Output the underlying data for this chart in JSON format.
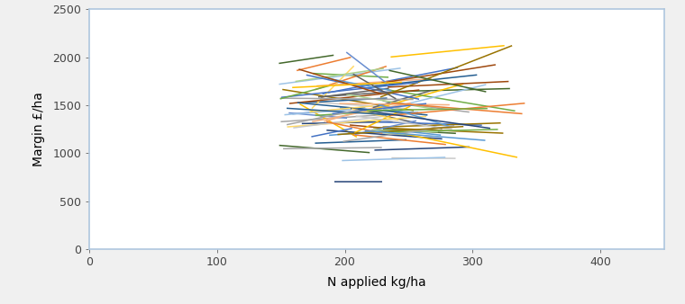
{
  "xlabel": "N applied kg/ha",
  "ylabel": "Margin £/ha",
  "xlim": [
    0,
    450
  ],
  "ylim": [
    0,
    2500
  ],
  "xticks": [
    0,
    100,
    200,
    300,
    400
  ],
  "yticks": [
    0,
    500,
    1000,
    1500,
    2000,
    2500
  ],
  "fig_facecolor": "#f0f0f0",
  "plot_bg_color": "#ffffff",
  "spine_color": "#aec6de",
  "line_colors": [
    "#4472c4",
    "#ed7d31",
    "#a5a5a5",
    "#ffc000",
    "#5b9bd5",
    "#70ad47",
    "#264478",
    "#9e480e",
    "#636363",
    "#997300",
    "#255e91",
    "#43682b",
    "#698ed0",
    "#f4b183",
    "#c9c9c9",
    "#ffd966",
    "#9dc3e6",
    "#a9d18e",
    "#4472c4",
    "#ed7d31",
    "#a5a5a5",
    "#ffc000",
    "#5b9bd5",
    "#70ad47",
    "#264478",
    "#9e480e",
    "#636363",
    "#997300",
    "#255e91",
    "#43682b",
    "#698ed0",
    "#f4b183",
    "#c9c9c9",
    "#ffd966",
    "#9dc3e6",
    "#a9d18e",
    "#4472c4",
    "#ed7d31",
    "#a5a5a5",
    "#ffc000",
    "#5b9bd5",
    "#70ad47",
    "#264478",
    "#9e480e",
    "#636363",
    "#997300",
    "#255e91",
    "#43682b",
    "#698ed0",
    "#f4b183",
    "#c9c9c9",
    "#ffd966",
    "#9dc3e6",
    "#a9d18e",
    "#4472c4",
    "#ed7d31",
    "#a5a5a5",
    "#ffc000",
    "#5b9bd5",
    "#70ad47",
    "#264478",
    "#9e480e",
    "#636363",
    "#997300",
    "#255e91",
    "#43682b",
    "#698ed0",
    "#f4b183",
    "#c9c9c9",
    "#ffd966",
    "#9dc3e6",
    "#a9d18e",
    "#4472c4",
    "#ed7d31",
    "#a5a5a5",
    "#ffc000",
    "#5b9bd5",
    "#70ad47",
    "#264478",
    "#9e480e",
    "#636363",
    "#997300",
    "#255e91",
    "#43682b"
  ],
  "seed": 42,
  "n_lines": 90,
  "x1_min": 148,
  "x1_max": 240,
  "x_gap_min": 30,
  "x_gap_max": 110,
  "x2_max": 360,
  "y_center": 1450,
  "y_spread": 260,
  "y_end_variation": 180,
  "y_min": 700,
  "y_max": 2120
}
